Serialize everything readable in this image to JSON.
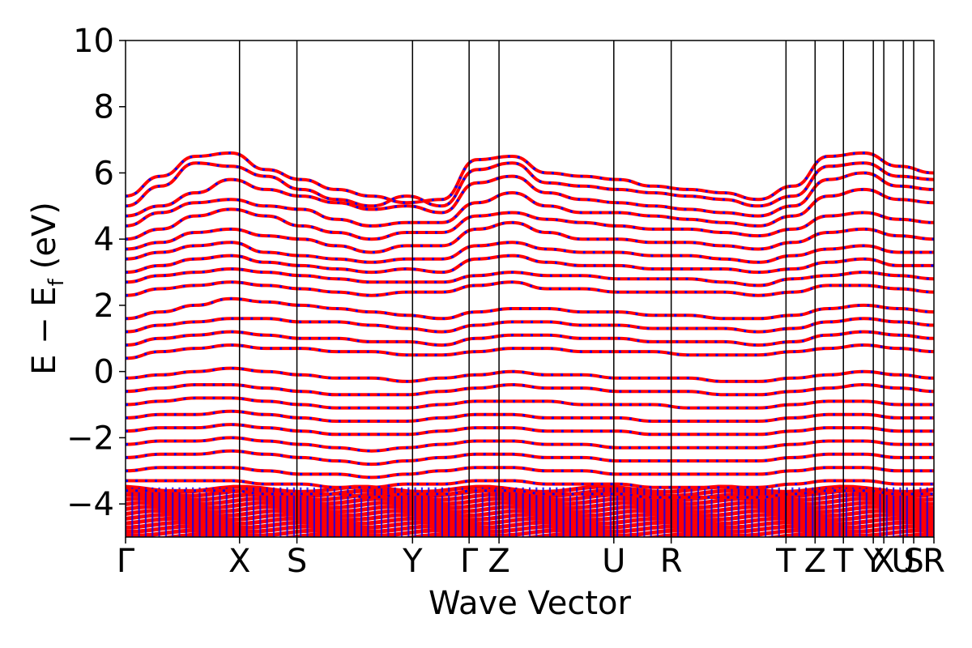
{
  "chart_data": {
    "type": "line",
    "title": "",
    "xlabel": "Wave Vector",
    "ylabel": "E − E_f (eV)",
    "ylabel_main": "E − E",
    "ylabel_sub": "f",
    "ylabel_unit": "(eV)",
    "ylim": [
      -5,
      10
    ],
    "yticks": [
      -4,
      -2,
      0,
      2,
      4,
      6,
      8,
      10
    ],
    "ytick_labels": [
      "−4",
      "−2",
      "0",
      "2",
      "4",
      "6",
      "8",
      "10"
    ],
    "xlim": [
      0,
      1
    ],
    "grid": false,
    "kpath": [
      {
        "label": "Γ",
        "x": 0.0
      },
      {
        "label": "X",
        "x": 0.141
      },
      {
        "label": "S",
        "x": 0.212
      },
      {
        "label": "Y",
        "x": 0.355
      },
      {
        "label": "Γ",
        "x": 0.425
      },
      {
        "label": "Z",
        "x": 0.462
      },
      {
        "label": "U",
        "x": 0.604
      },
      {
        "label": "R",
        "x": 0.675
      },
      {
        "label": "T",
        "x": 0.817
      },
      {
        "label": "Z",
        "x": 0.853
      },
      {
        "label": "T",
        "x": 0.888
      },
      {
        "label": "Y",
        "x": 0.925
      },
      {
        "label": "X",
        "x": 0.938
      },
      {
        "label": "U",
        "x": 0.962
      },
      {
        "label": "S",
        "x": 0.975
      },
      {
        "label": "R",
        "x": 1.0
      }
    ],
    "series": [
      {
        "color": "#ff0000",
        "style": "solid"
      },
      {
        "color": "#0000ff",
        "style": "dotted"
      }
    ],
    "bands_eV": [
      [
        5.3,
        5.9,
        6.5,
        6.6,
        6.1,
        5.8,
        5.5,
        5.3,
        5.1,
        5.2,
        6.4,
        6.5,
        6.0,
        5.9,
        5.8,
        5.6,
        5.5,
        5.4,
        5.2,
        5.6,
        6.5,
        6.6,
        6.2,
        6.0
      ],
      [
        5.0,
        5.6,
        6.3,
        6.2,
        5.9,
        5.5,
        5.2,
        5.0,
        5.3,
        5.0,
        6.1,
        6.3,
        5.7,
        5.6,
        5.5,
        5.4,
        5.3,
        5.2,
        5.0,
        5.3,
        6.2,
        6.3,
        5.9,
        5.8
      ],
      [
        4.7,
        5.0,
        5.4,
        5.8,
        5.5,
        5.3,
        5.1,
        4.9,
        5.0,
        4.8,
        5.7,
        5.9,
        5.4,
        5.2,
        5.1,
        5.0,
        4.9,
        4.8,
        4.7,
        5.0,
        5.8,
        6.0,
        5.6,
        5.5
      ],
      [
        4.4,
        4.8,
        5.1,
        5.2,
        5.0,
        4.9,
        4.6,
        4.4,
        4.5,
        4.5,
        5.1,
        5.4,
        5.0,
        4.8,
        4.8,
        4.7,
        4.6,
        4.5,
        4.4,
        4.7,
        5.3,
        5.5,
        5.2,
        5.1
      ],
      [
        4.0,
        4.3,
        4.7,
        4.9,
        4.7,
        4.4,
        4.2,
        4.0,
        4.2,
        4.2,
        4.7,
        4.8,
        4.6,
        4.5,
        4.4,
        4.3,
        4.3,
        4.2,
        4.1,
        4.3,
        4.7,
        4.8,
        4.6,
        4.5
      ],
      [
        3.7,
        3.9,
        4.2,
        4.3,
        4.1,
        4.0,
        3.8,
        3.6,
        3.8,
        3.8,
        4.3,
        4.5,
        4.2,
        4.0,
        4.0,
        3.9,
        3.9,
        3.8,
        3.7,
        3.9,
        4.2,
        4.3,
        4.1,
        4.0
      ],
      [
        3.4,
        3.6,
        3.8,
        3.9,
        3.6,
        3.5,
        3.4,
        3.3,
        3.4,
        3.4,
        3.8,
        3.9,
        3.7,
        3.6,
        3.6,
        3.5,
        3.5,
        3.4,
        3.3,
        3.5,
        3.7,
        3.8,
        3.6,
        3.6
      ],
      [
        3.0,
        3.2,
        3.4,
        3.5,
        3.3,
        3.2,
        3.1,
        3.0,
        3.1,
        3.0,
        3.4,
        3.5,
        3.3,
        3.2,
        3.2,
        3.1,
        3.1,
        3.1,
        3.0,
        3.1,
        3.3,
        3.4,
        3.2,
        3.2
      ],
      [
        2.7,
        2.9,
        3.0,
        3.1,
        3.0,
        2.9,
        2.8,
        2.7,
        2.7,
        2.7,
        2.9,
        3.0,
        2.9,
        2.9,
        2.8,
        2.8,
        2.8,
        2.7,
        2.6,
        2.8,
        2.9,
        3.0,
        2.9,
        2.8
      ],
      [
        2.3,
        2.5,
        2.6,
        2.7,
        2.6,
        2.5,
        2.4,
        2.3,
        2.4,
        2.4,
        2.6,
        2.7,
        2.5,
        2.5,
        2.4,
        2.4,
        2.4,
        2.4,
        2.3,
        2.4,
        2.6,
        2.6,
        2.5,
        2.4
      ],
      [
        1.6,
        1.8,
        2.0,
        2.2,
        2.1,
        2.0,
        1.9,
        1.8,
        1.7,
        1.6,
        1.8,
        1.9,
        1.9,
        1.8,
        1.8,
        1.7,
        1.7,
        1.6,
        1.6,
        1.7,
        1.9,
        2.0,
        1.9,
        1.8
      ],
      [
        1.2,
        1.4,
        1.5,
        1.6,
        1.6,
        1.5,
        1.5,
        1.4,
        1.3,
        1.2,
        1.4,
        1.5,
        1.5,
        1.4,
        1.4,
        1.3,
        1.3,
        1.3,
        1.2,
        1.3,
        1.5,
        1.6,
        1.5,
        1.4
      ],
      [
        0.8,
        1.0,
        1.1,
        1.2,
        1.1,
        1.0,
        1.0,
        0.9,
        0.9,
        0.8,
        1.0,
        1.1,
        1.1,
        1.0,
        1.0,
        0.9,
        0.9,
        0.9,
        0.8,
        0.9,
        1.1,
        1.2,
        1.1,
        1.0
      ],
      [
        0.4,
        0.6,
        0.7,
        0.8,
        0.7,
        0.7,
        0.6,
        0.6,
        0.5,
        0.5,
        0.6,
        0.7,
        0.7,
        0.6,
        0.6,
        0.6,
        0.5,
        0.5,
        0.5,
        0.6,
        0.7,
        0.8,
        0.7,
        0.6
      ],
      [
        -0.2,
        -0.1,
        0.0,
        0.1,
        0.0,
        -0.1,
        -0.2,
        -0.2,
        -0.3,
        -0.2,
        -0.1,
        0.0,
        -0.1,
        -0.1,
        -0.2,
        -0.2,
        -0.2,
        -0.3,
        -0.3,
        -0.2,
        -0.1,
        0.0,
        -0.1,
        -0.2
      ],
      [
        -0.6,
        -0.5,
        -0.4,
        -0.4,
        -0.5,
        -0.6,
        -0.7,
        -0.7,
        -0.7,
        -0.6,
        -0.5,
        -0.4,
        -0.5,
        -0.5,
        -0.6,
        -0.6,
        -0.6,
        -0.7,
        -0.7,
        -0.6,
        -0.5,
        -0.4,
        -0.5,
        -0.6
      ],
      [
        -1.0,
        -0.9,
        -0.8,
        -0.8,
        -0.9,
        -1.0,
        -1.1,
        -1.1,
        -1.1,
        -1.0,
        -0.9,
        -0.9,
        -0.9,
        -1.0,
        -1.0,
        -1.0,
        -1.1,
        -1.1,
        -1.1,
        -1.0,
        -0.9,
        -0.9,
        -1.0,
        -1.0
      ],
      [
        -1.4,
        -1.3,
        -1.3,
        -1.2,
        -1.3,
        -1.4,
        -1.5,
        -1.5,
        -1.5,
        -1.4,
        -1.3,
        -1.3,
        -1.4,
        -1.4,
        -1.4,
        -1.5,
        -1.5,
        -1.5,
        -1.5,
        -1.4,
        -1.3,
        -1.3,
        -1.4,
        -1.4
      ],
      [
        -1.8,
        -1.7,
        -1.7,
        -1.6,
        -1.7,
        -1.8,
        -1.9,
        -1.9,
        -1.9,
        -1.8,
        -1.7,
        -1.7,
        -1.8,
        -1.8,
        -1.8,
        -1.9,
        -1.9,
        -1.9,
        -1.9,
        -1.8,
        -1.7,
        -1.7,
        -1.8,
        -1.8
      ],
      [
        -2.2,
        -2.1,
        -2.1,
        -2.0,
        -2.1,
        -2.2,
        -2.3,
        -2.4,
        -2.3,
        -2.2,
        -2.1,
        -2.1,
        -2.2,
        -2.2,
        -2.3,
        -2.3,
        -2.3,
        -2.3,
        -2.3,
        -2.2,
        -2.1,
        -2.1,
        -2.2,
        -2.2
      ],
      [
        -2.6,
        -2.5,
        -2.5,
        -2.4,
        -2.5,
        -2.6,
        -2.7,
        -2.8,
        -2.7,
        -2.6,
        -2.5,
        -2.5,
        -2.6,
        -2.6,
        -2.7,
        -2.7,
        -2.7,
        -2.7,
        -2.7,
        -2.6,
        -2.5,
        -2.5,
        -2.6,
        -2.6
      ],
      [
        -3.0,
        -2.9,
        -2.9,
        -2.9,
        -3.0,
        -3.1,
        -3.1,
        -3.2,
        -3.1,
        -3.0,
        -2.9,
        -2.9,
        -3.0,
        -3.0,
        -3.1,
        -3.1,
        -3.1,
        -3.1,
        -3.1,
        -3.0,
        -2.9,
        -2.9,
        -3.0,
        -3.0
      ],
      [
        -3.3,
        -3.3,
        -3.3,
        -3.3,
        -3.4,
        -3.4,
        -3.5,
        -3.5,
        -3.4,
        -3.4,
        -3.3,
        -3.3,
        -3.4,
        -3.4,
        -3.4,
        -3.5,
        -3.5,
        -3.5,
        -3.5,
        -3.4,
        -3.3,
        -3.3,
        -3.4,
        -3.4
      ],
      [
        -3.6,
        -3.6,
        -3.6,
        -3.6,
        -3.7,
        -3.7,
        -3.7,
        -3.8,
        -3.7,
        -3.7,
        -3.6,
        -3.6,
        -3.7,
        -3.7,
        -3.7,
        -3.8,
        -3.8,
        -3.8,
        -3.8,
        -3.7,
        -3.6,
        -3.6,
        -3.7,
        -3.7
      ]
    ],
    "dense_region_eV": [
      -5.0,
      -3.5
    ]
  }
}
